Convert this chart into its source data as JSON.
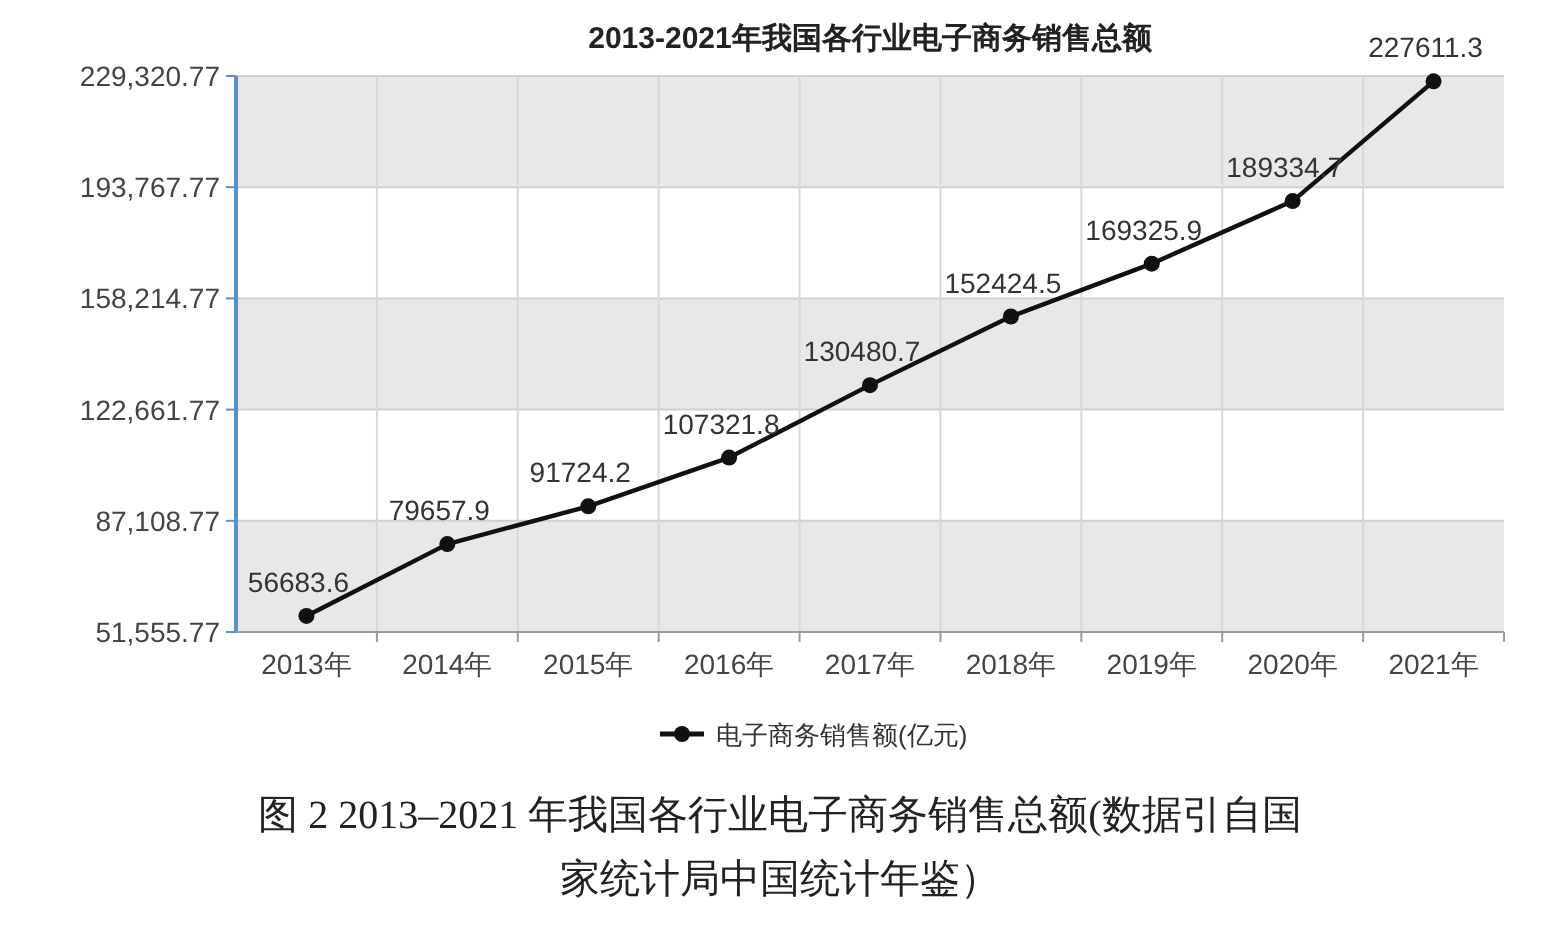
{
  "chart_data": {
    "type": "line",
    "title": "2013-2021年我国各行业电子商务销售总额",
    "categories": [
      "2013年",
      "2014年",
      "2015年",
      "2016年",
      "2017年",
      "2018年",
      "2019年",
      "2020年",
      "2021年"
    ],
    "series": [
      {
        "name": "电子商务销售额(亿元)",
        "color": "#111111",
        "values": [
          56683.6,
          79657.9,
          91724.2,
          107321.8,
          130480.7,
          152424.5,
          169325.9,
          189334.7,
          227611.3
        ]
      }
    ],
    "ylim": [
      51555.77,
      229320.77
    ],
    "yticks": [
      {
        "value": 51555.77,
        "label": "51,555.77"
      },
      {
        "value": 87108.77,
        "label": "87,108.77"
      },
      {
        "value": 122661.77,
        "label": "122,661.77"
      },
      {
        "value": 158214.77,
        "label": "158,214.77"
      },
      {
        "value": 193767.77,
        "label": "193,767.77"
      },
      {
        "value": 229320.77,
        "label": "229,320.77"
      }
    ],
    "grid": true,
    "data_labels": true,
    "legend": "bottom",
    "marker": "circle",
    "line_style": "solid",
    "annotations": [
      "图 2 2013–2021 年我国各行业电子商务销售总额(数据引自国家统计局中国统计年鉴）"
    ]
  }
}
